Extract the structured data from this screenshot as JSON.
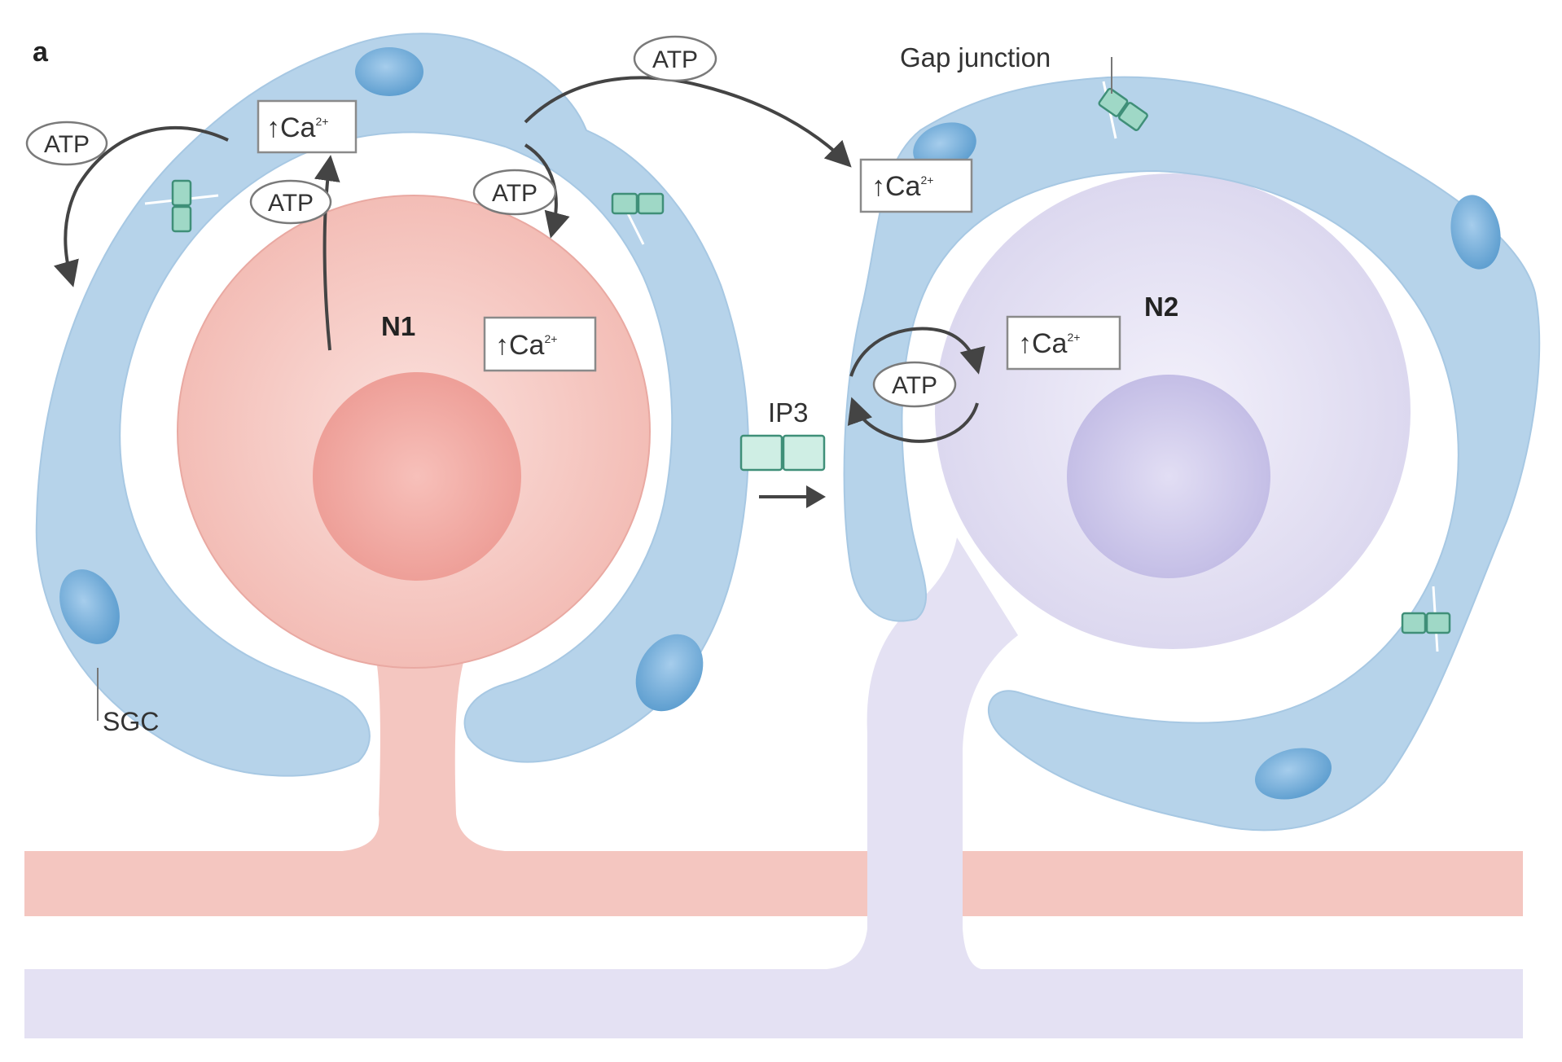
{
  "panel_label": "a",
  "neurons": {
    "n1_label": "N1",
    "n2_label": "N2"
  },
  "labels": {
    "gap_junction": "Gap junction",
    "sgc": "SGC",
    "ip3": "IP3",
    "atp": "ATP",
    "ca_prefix": "↑Ca",
    "ca_sup": "2+"
  },
  "colors": {
    "sgc_blue": "#b6d3ea",
    "sgc_nucleus": "#7fb4dc",
    "neuron1_pink": "#f4c6c0",
    "neuron1_nucleus": "#f0a9a2",
    "neuron2_lavender": "#e4e1f3",
    "neuron2_nucleus": "#cfcaea",
    "gap_junction_green": "#9fd8c6"
  }
}
